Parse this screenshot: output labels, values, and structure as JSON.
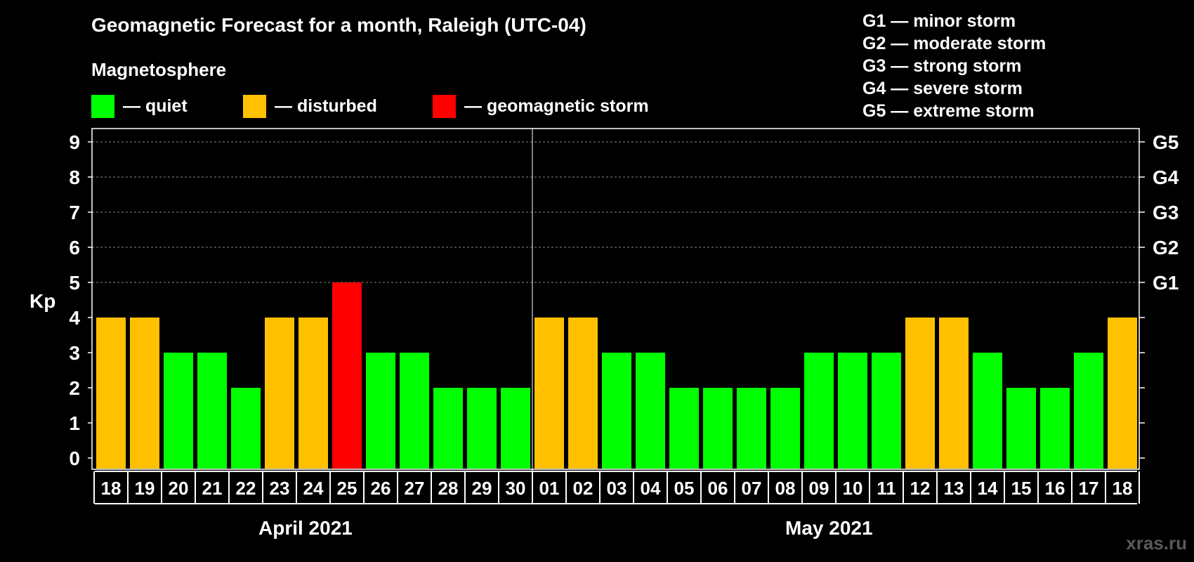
{
  "title": "Geomagnetic Forecast for a month, Raleigh (UTC-04)",
  "magnetosphere_label": "Magnetosphere",
  "legend": [
    {
      "label": "— quiet",
      "color": "#00ff00"
    },
    {
      "label": "— disturbed",
      "color": "#ffc000"
    },
    {
      "label": "— geomagnetic storm",
      "color": "#ff0000"
    }
  ],
  "storm_scale": [
    "G1 — minor storm",
    "G2 — moderate storm",
    "G3 — strong storm",
    "G4 — severe storm",
    "G5 — extreme storm"
  ],
  "months": [
    "April 2021",
    "May 2021"
  ],
  "watermark": "xras.ru",
  "chart_data": {
    "type": "bar",
    "ylabel": "Kp",
    "ylim": [
      0,
      9
    ],
    "y_ticks": [
      "0",
      "1",
      "2",
      "3",
      "4",
      "5",
      "6",
      "7",
      "8",
      "9"
    ],
    "right_ticks": [
      {
        "kp": 5,
        "label": "G1"
      },
      {
        "kp": 6,
        "label": "G2"
      },
      {
        "kp": 7,
        "label": "G3"
      },
      {
        "kp": 8,
        "label": "G4"
      },
      {
        "kp": 9,
        "label": "G5"
      }
    ],
    "grid": true,
    "categories": [
      "18",
      "19",
      "20",
      "21",
      "22",
      "23",
      "24",
      "25",
      "26",
      "27",
      "28",
      "29",
      "30",
      "01",
      "02",
      "03",
      "04",
      "05",
      "06",
      "07",
      "08",
      "09",
      "10",
      "11",
      "12",
      "13",
      "14",
      "15",
      "16",
      "17",
      "18"
    ],
    "values": [
      4,
      4,
      3,
      3,
      2,
      4,
      4,
      5,
      3,
      3,
      2,
      2,
      2,
      4,
      4,
      3,
      3,
      2,
      2,
      2,
      2,
      3,
      3,
      3,
      4,
      4,
      3,
      2,
      2,
      3,
      4
    ],
    "colors": {
      "quiet": "#00ff00",
      "disturbed": "#ffc000",
      "storm": "#ff0000"
    }
  }
}
